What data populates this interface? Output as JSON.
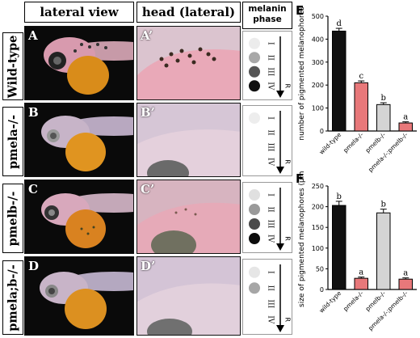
{
  "headers": {
    "lateral": "lateral view",
    "head": "head (lateral)",
    "phase": "melanin phase"
  },
  "rows": [
    {
      "label": "Wild-type",
      "left_tag": "A",
      "right_tag": "A’"
    },
    {
      "label": "pmela-/-",
      "left_tag": "B",
      "right_tag": "B’"
    },
    {
      "label": "pmelb-/-",
      "left_tag": "C",
      "right_tag": "C’"
    },
    {
      "label": "pmela;b-/-",
      "left_tag": "D",
      "right_tag": "D’"
    }
  ],
  "phase_numerals": [
    "I",
    "II",
    "III",
    "IV"
  ],
  "phase_end": "R",
  "phase_dots": [
    [
      "#ececec",
      "#a8a8a8",
      "#555555",
      "#111111"
    ],
    [
      "#ededed",
      "",
      "",
      ""
    ],
    [
      "#e0e0e0",
      "#9a9a9a",
      "#4a4a4a",
      "#0d0d0d"
    ],
    [
      "#e6e6e6",
      "#a6a6a6",
      "",
      ""
    ]
  ],
  "colors": {
    "wildtype": "#111111",
    "pmela": "#e8787a",
    "pmelb": "#d4d4d4",
    "double": "#e8787a"
  },
  "chart_data": [
    {
      "panel": "E",
      "type": "bar",
      "categories": [
        "wild-type",
        "pmela-/-",
        "pmelb-/-",
        "pmela-/-;pmelb-/-"
      ],
      "values": [
        435,
        210,
        115,
        35
      ],
      "errors": [
        12,
        8,
        8,
        5
      ],
      "letters": [
        "d",
        "c",
        "b",
        "a"
      ],
      "ylabel": "number of pigmented melanophores",
      "ylim": [
        0,
        500
      ],
      "yticks": [
        0,
        100,
        200,
        300,
        400,
        500
      ]
    },
    {
      "panel": "F",
      "type": "bar",
      "categories": [
        "wild-type",
        "pmela-/-",
        "pmelb-/-",
        "pmela-/-;pmelb-/-"
      ],
      "values": [
        203,
        27,
        185,
        25
      ],
      "errors": [
        10,
        3,
        9,
        3
      ],
      "letters": [
        "b",
        "a",
        "b",
        "a"
      ],
      "ylabel": "size of pigmented melanophores (μm)",
      "ylim": [
        0,
        250
      ],
      "yticks": [
        0,
        50,
        100,
        150,
        200,
        250
      ]
    }
  ]
}
